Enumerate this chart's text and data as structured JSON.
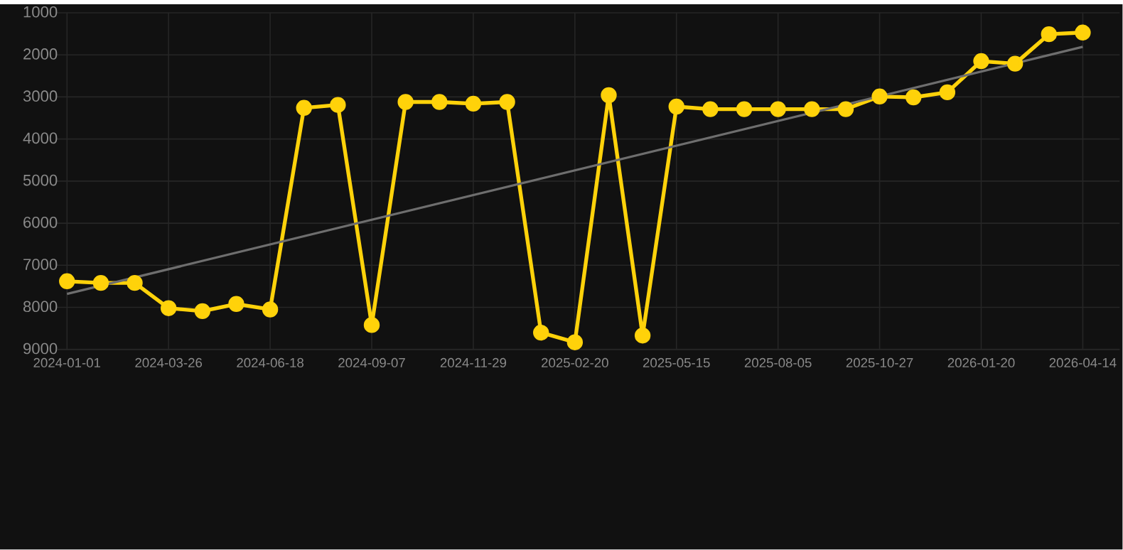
{
  "chart_data": {
    "type": "line",
    "categories": [
      "2024-01-01",
      null,
      null,
      "2024-03-26",
      null,
      null,
      "2024-06-18",
      null,
      null,
      "2024-09-07",
      null,
      null,
      "2024-11-29",
      null,
      null,
      "2025-02-20",
      null,
      null,
      "2025-05-15",
      null,
      null,
      "2025-08-05",
      null,
      null,
      "2025-10-27",
      null,
      null,
      "2026-01-20",
      null,
      null,
      "2026-04-14"
    ],
    "series": [
      {
        "color": "#ffd20a",
        "marker": "circle",
        "values": [
          7380,
          7420,
          7420,
          8020,
          8090,
          7920,
          8050,
          3260,
          3190,
          8420,
          3120,
          3120,
          3160,
          3120,
          8600,
          8830,
          2960,
          8670,
          3230,
          3290,
          3290,
          3290,
          3290,
          3290,
          2990,
          3010,
          2890,
          2150,
          2210,
          1510,
          1470
        ]
      },
      {
        "color": "#6e6e6e",
        "marker": "none",
        "values": [
          7680,
          null,
          null,
          null,
          null,
          null,
          null,
          null,
          null,
          null,
          null,
          null,
          null,
          null,
          null,
          null,
          null,
          null,
          null,
          null,
          null,
          null,
          null,
          null,
          null,
          null,
          null,
          null,
          null,
          null,
          1810
        ]
      }
    ],
    "ylim": [
      9000,
      1000
    ],
    "yticks": [
      1000,
      2000,
      3000,
      4000,
      5000,
      6000,
      7000,
      8000,
      9000
    ],
    "grid": true,
    "line_style": "solid"
  }
}
